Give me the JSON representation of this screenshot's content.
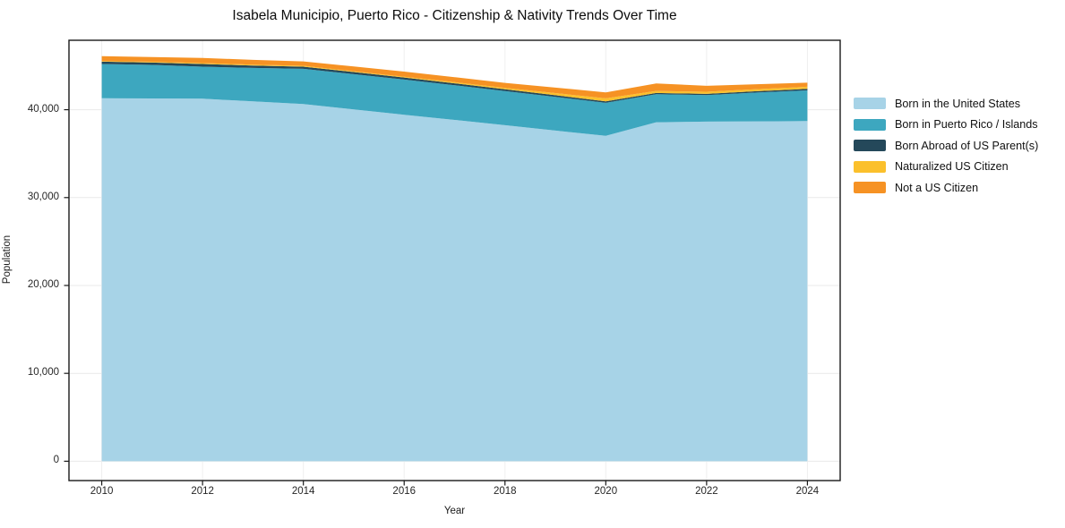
{
  "chart_data": {
    "type": "area",
    "stacked": true,
    "title": "Isabela Municipio, Puerto Rico - Citizenship & Nativity Trends Over Time",
    "xlabel": "Year",
    "ylabel": "Population",
    "x": [
      2010,
      2011,
      2012,
      2013,
      2014,
      2015,
      2016,
      2017,
      2018,
      2019,
      2020,
      2021,
      2022,
      2023,
      2024
    ],
    "series": [
      {
        "name": "Born in the United States",
        "color": "#a7d3e7",
        "values": [
          41300,
          41280,
          41250,
          40950,
          40650,
          40040,
          39430,
          38840,
          38240,
          37630,
          37020,
          38570,
          38640,
          38670,
          38700
        ]
      },
      {
        "name": "Born in Puerto Rico / Islands",
        "color": "#3da7bf",
        "values": [
          3900,
          3820,
          3650,
          3800,
          4000,
          4000,
          4000,
          3950,
          3890,
          3830,
          3760,
          3200,
          3030,
          3280,
          3500
        ]
      },
      {
        "name": "Born Abroad of US Parent(s)",
        "color": "#24485a",
        "values": [
          270,
          265,
          300,
          275,
          250,
          240,
          230,
          215,
          200,
          190,
          175,
          130,
          130,
          155,
          175
        ]
      },
      {
        "name": "Naturalized US Citizen",
        "color": "#fbc02c",
        "values": [
          80,
          90,
          100,
          100,
          100,
          100,
          100,
          125,
          150,
          240,
          335,
          240,
          240,
          235,
          235
        ]
      },
      {
        "name": "Not a US Citizen",
        "color": "#f69224",
        "values": [
          550,
          545,
          590,
          545,
          500,
          540,
          580,
          575,
          570,
          625,
          680,
          850,
          680,
          565,
          460
        ]
      }
    ],
    "xticks": [
      2010,
      2012,
      2014,
      2016,
      2018,
      2020,
      2022,
      2024
    ],
    "yticks": [
      0,
      10000,
      20000,
      30000,
      40000
    ],
    "xlim": [
      2009.35,
      2024.65
    ],
    "ylim": [
      -2200,
      47900
    ],
    "grid": true,
    "legend_position": "right",
    "colors": {
      "grid": "#e9e9e9",
      "border": "#1a1a1a",
      "tick": "#1a1a1a"
    }
  }
}
